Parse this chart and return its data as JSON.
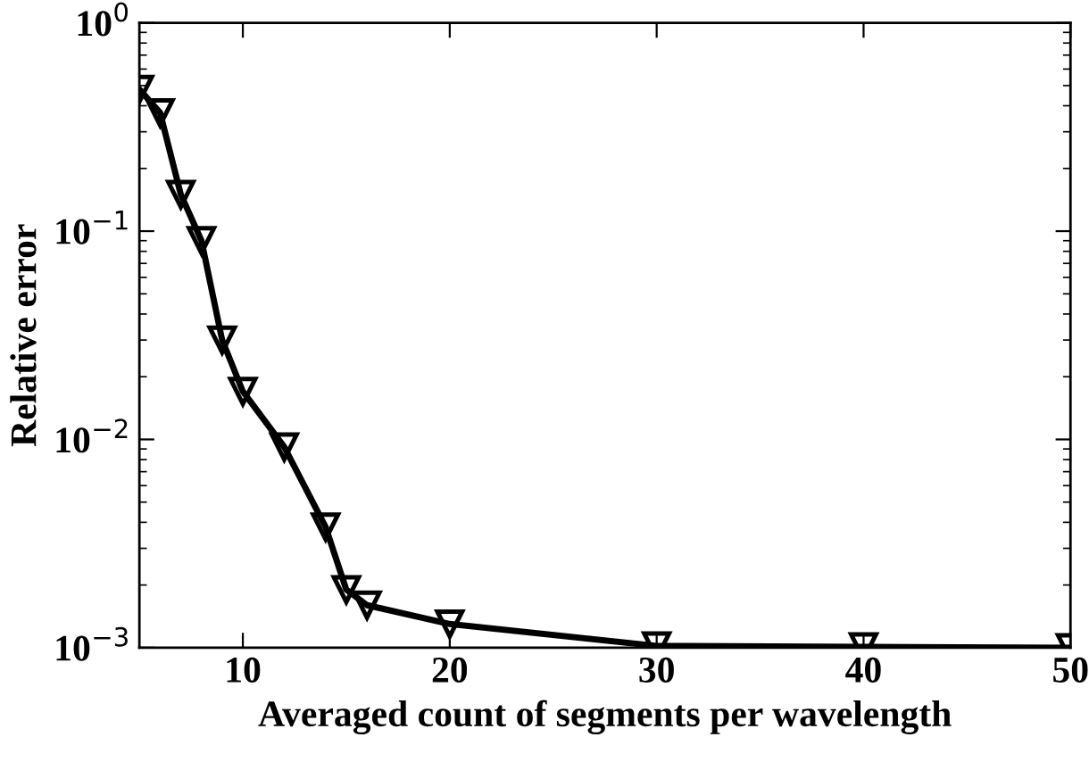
{
  "chart_data": {
    "type": "line",
    "xlabel": "Averaged count of segments per wavelength",
    "ylabel": "Relative error",
    "x": [
      5,
      6,
      7,
      8,
      9,
      10,
      12,
      14,
      15,
      16,
      20,
      30,
      40,
      50
    ],
    "series": [
      {
        "color": "#000000",
        "values": [
          0.48,
          0.37,
          0.15,
          0.09,
          0.03,
          0.017,
          0.0092,
          0.0038,
          0.0019,
          0.0016,
          0.0013,
          0.00102,
          0.00101,
          0.001
        ]
      }
    ],
    "log": "y",
    "xlim": [
      5,
      50
    ],
    "ylim": [
      0.001,
      1
    ],
    "xticks": [
      10,
      20,
      30,
      40,
      50
    ],
    "yticks": [
      {
        "value": 1,
        "label": "10$^{0}$"
      },
      {
        "value": 0.1,
        "label": "10$^{−1}$"
      },
      {
        "value": 0.01,
        "label": "10$^{−2}$"
      },
      {
        "value": 0.001,
        "label": "10$^{−3}$"
      }
    ],
    "marker": "triangle_down",
    "line_style": "solid",
    "grid": false,
    "legend": false
  }
}
